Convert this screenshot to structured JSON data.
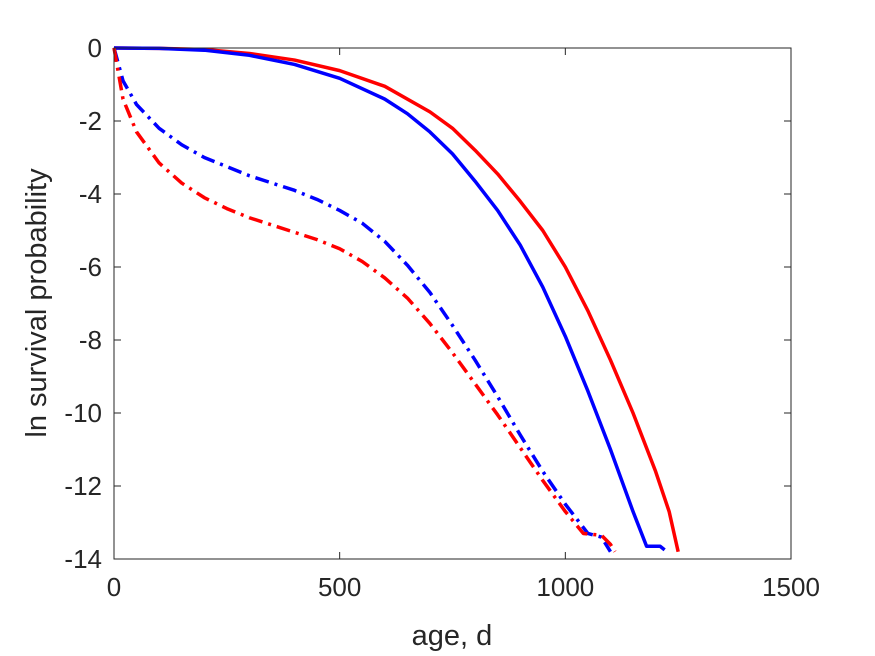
{
  "chart_data": {
    "type": "line",
    "title": "",
    "xlabel": "age, d",
    "ylabel": "ln survival probability",
    "xlim": [
      0,
      1500
    ],
    "ylim": [
      -14,
      0
    ],
    "x_ticks": [
      0,
      500,
      1000,
      1500
    ],
    "y_ticks": [
      0,
      -2,
      -4,
      -6,
      -8,
      -10,
      -12,
      -14
    ],
    "x_tick_labels": [
      "0",
      "500",
      "1000",
      "1500"
    ],
    "y_tick_labels": [
      "0",
      "-2",
      "-4",
      "-6",
      "-8",
      "-10",
      "-12",
      "-14"
    ],
    "grid": false,
    "legend": "none",
    "series": [
      {
        "color": "#ff0000",
        "style": "solid",
        "points": [
          [
            0,
            0
          ],
          [
            100,
            -0.01
          ],
          [
            200,
            -0.04
          ],
          [
            300,
            -0.15
          ],
          [
            400,
            -0.33
          ],
          [
            500,
            -0.62
          ],
          [
            600,
            -1.05
          ],
          [
            700,
            -1.75
          ],
          [
            750,
            -2.2
          ],
          [
            800,
            -2.8
          ],
          [
            850,
            -3.45
          ],
          [
            900,
            -4.2
          ],
          [
            950,
            -5.0
          ],
          [
            1000,
            -6.0
          ],
          [
            1050,
            -7.2
          ],
          [
            1100,
            -8.55
          ],
          [
            1150,
            -10.0
          ],
          [
            1200,
            -11.6
          ],
          [
            1230,
            -12.7
          ],
          [
            1250,
            -13.8
          ]
        ]
      },
      {
        "color": "#0000ff",
        "style": "solid",
        "points": [
          [
            0,
            0
          ],
          [
            100,
            -0.01
          ],
          [
            200,
            -0.06
          ],
          [
            300,
            -0.2
          ],
          [
            400,
            -0.45
          ],
          [
            500,
            -0.83
          ],
          [
            600,
            -1.4
          ],
          [
            650,
            -1.8
          ],
          [
            700,
            -2.3
          ],
          [
            750,
            -2.9
          ],
          [
            800,
            -3.65
          ],
          [
            850,
            -4.45
          ],
          [
            900,
            -5.4
          ],
          [
            950,
            -6.55
          ],
          [
            1000,
            -7.9
          ],
          [
            1050,
            -9.4
          ],
          [
            1100,
            -11.0
          ],
          [
            1150,
            -12.7
          ],
          [
            1180,
            -13.65
          ],
          [
            1210,
            -13.65
          ],
          [
            1220,
            -13.75
          ]
        ]
      },
      {
        "color": "#0000ff",
        "style": "dashdot",
        "points": [
          [
            0,
            0
          ],
          [
            20,
            -0.9
          ],
          [
            50,
            -1.55
          ],
          [
            100,
            -2.2
          ],
          [
            150,
            -2.65
          ],
          [
            200,
            -3.0
          ],
          [
            250,
            -3.25
          ],
          [
            300,
            -3.5
          ],
          [
            350,
            -3.7
          ],
          [
            400,
            -3.9
          ],
          [
            450,
            -4.15
          ],
          [
            500,
            -4.45
          ],
          [
            550,
            -4.8
          ],
          [
            600,
            -5.3
          ],
          [
            650,
            -5.95
          ],
          [
            700,
            -6.7
          ],
          [
            750,
            -7.6
          ],
          [
            800,
            -8.55
          ],
          [
            850,
            -9.55
          ],
          [
            900,
            -10.6
          ],
          [
            950,
            -11.6
          ],
          [
            1000,
            -12.5
          ],
          [
            1050,
            -13.3
          ],
          [
            1080,
            -13.4
          ],
          [
            1100,
            -13.8
          ]
        ]
      },
      {
        "color": "#ff0000",
        "style": "dashdot",
        "points": [
          [
            0,
            0
          ],
          [
            20,
            -1.4
          ],
          [
            50,
            -2.3
          ],
          [
            100,
            -3.15
          ],
          [
            150,
            -3.7
          ],
          [
            200,
            -4.1
          ],
          [
            250,
            -4.4
          ],
          [
            300,
            -4.65
          ],
          [
            350,
            -4.85
          ],
          [
            400,
            -5.05
          ],
          [
            450,
            -5.25
          ],
          [
            500,
            -5.5
          ],
          [
            550,
            -5.85
          ],
          [
            600,
            -6.3
          ],
          [
            650,
            -6.85
          ],
          [
            700,
            -7.55
          ],
          [
            750,
            -8.35
          ],
          [
            800,
            -9.2
          ],
          [
            850,
            -10.05
          ],
          [
            900,
            -10.95
          ],
          [
            950,
            -11.85
          ],
          [
            1000,
            -12.7
          ],
          [
            1040,
            -13.3
          ],
          [
            1080,
            -13.35
          ],
          [
            1100,
            -13.6
          ],
          [
            1110,
            -13.8
          ]
        ]
      }
    ]
  }
}
